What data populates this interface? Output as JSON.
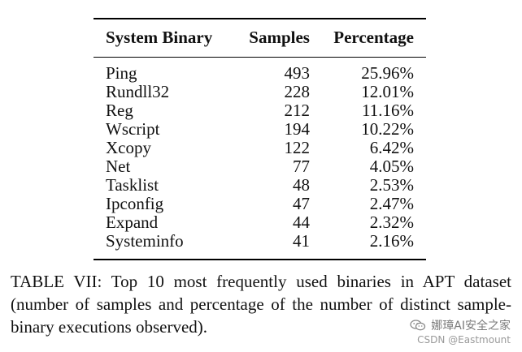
{
  "table": {
    "headers": [
      "System Binary",
      "Samples",
      "Percentage"
    ],
    "rows": [
      {
        "binary": "Ping",
        "samples": "493",
        "percentage": "25.96%"
      },
      {
        "binary": "Rundll32",
        "samples": "228",
        "percentage": "12.01%"
      },
      {
        "binary": "Reg",
        "samples": "212",
        "percentage": "11.16%"
      },
      {
        "binary": "Wscript",
        "samples": "194",
        "percentage": "10.22%"
      },
      {
        "binary": "Xcopy",
        "samples": "122",
        "percentage": "6.42%"
      },
      {
        "binary": "Net",
        "samples": "77",
        "percentage": "4.05%"
      },
      {
        "binary": "Tasklist",
        "samples": "48",
        "percentage": "2.53%"
      },
      {
        "binary": "Ipconfig",
        "samples": "47",
        "percentage": "2.47%"
      },
      {
        "binary": "Expand",
        "samples": "44",
        "percentage": "2.32%"
      },
      {
        "binary": "Systeminfo",
        "samples": "41",
        "percentage": "2.16%"
      }
    ]
  },
  "caption": "TABLE VII: Top 10 most frequently used binaries in APT dataset (number of samples and percentage of the number of distinct sample-binary executions observed).",
  "watermark": {
    "line1": "娜璋AI安全之家",
    "line2": "CSDN @Eastmount",
    "icon": "wechat-icon"
  }
}
